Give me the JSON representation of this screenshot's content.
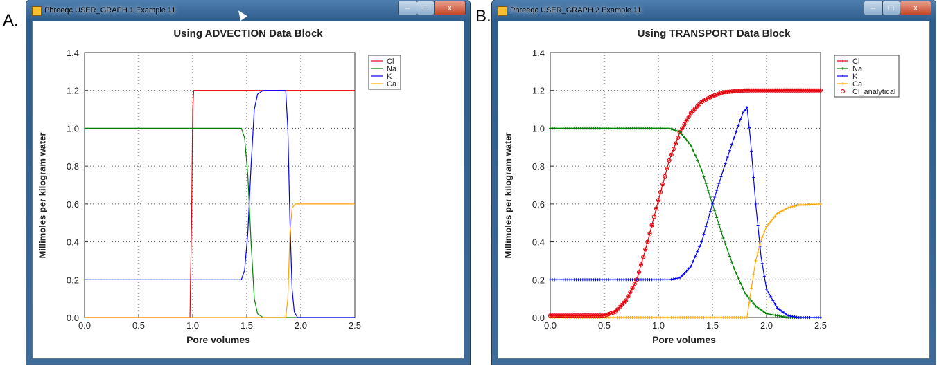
{
  "labels": {
    "a": "A.",
    "b": "B."
  },
  "windows": [
    {
      "title": "Phreeqc USER_GRAPH 1 Example 11",
      "controls": {
        "minimize": "–",
        "maximize": "□",
        "close": "x"
      }
    },
    {
      "title": "Phreeqc USER_GRAPH 2 Example 11",
      "controls": {
        "minimize": "–",
        "maximize": "□",
        "close": "x"
      }
    }
  ],
  "chart_data": [
    {
      "type": "line",
      "title": "Using ADVECTION Data Block",
      "xlabel": "Pore volumes",
      "ylabel": "Millimoles per kilogram water",
      "xlim": [
        0,
        2.5
      ],
      "ylim": [
        0,
        1.4
      ],
      "xticks": [
        "0.0",
        "0.5",
        "1.0",
        "1.5",
        "2.0",
        "2.5"
      ],
      "yticks": [
        "0.0",
        "0.2",
        "0.4",
        "0.6",
        "0.8",
        "1.0",
        "1.2",
        "1.4"
      ],
      "grid": true,
      "legend": "top-right",
      "series": [
        {
          "name": "Cl",
          "color": "#e8000b",
          "marker": "none",
          "points": [
            [
              0,
              0
            ],
            [
              0.975,
              0
            ],
            [
              0.98,
              0.2
            ],
            [
              0.99,
              0.5
            ],
            [
              1.0,
              1.1
            ],
            [
              1.01,
              1.2
            ],
            [
              2.5,
              1.2
            ]
          ]
        },
        {
          "name": "Na",
          "color": "#008000",
          "marker": "none",
          "points": [
            [
              0,
              1.0
            ],
            [
              1.45,
              1.0
            ],
            [
              1.48,
              0.95
            ],
            [
              1.51,
              0.75
            ],
            [
              1.54,
              0.4
            ],
            [
              1.57,
              0.1
            ],
            [
              1.6,
              0.02
            ],
            [
              1.65,
              0
            ],
            [
              2.5,
              0
            ]
          ]
        },
        {
          "name": "K",
          "color": "#0000ff",
          "marker": "none",
          "points": [
            [
              0,
              0.2
            ],
            [
              1.45,
              0.2
            ],
            [
              1.48,
              0.25
            ],
            [
              1.51,
              0.45
            ],
            [
              1.54,
              0.8
            ],
            [
              1.57,
              1.1
            ],
            [
              1.6,
              1.18
            ],
            [
              1.65,
              1.2
            ],
            [
              1.86,
              1.2
            ],
            [
              1.88,
              1.0
            ],
            [
              1.9,
              0.5
            ],
            [
              1.92,
              0.15
            ],
            [
              1.94,
              0.03
            ],
            [
              1.97,
              0
            ],
            [
              2.5,
              0
            ]
          ]
        },
        {
          "name": "Ca",
          "color": "#ffa500",
          "marker": "none",
          "points": [
            [
              0,
              0
            ],
            [
              1.86,
              0
            ],
            [
              1.88,
              0.1
            ],
            [
              1.9,
              0.45
            ],
            [
              1.92,
              0.58
            ],
            [
              1.95,
              0.6
            ],
            [
              2.5,
              0.6
            ]
          ]
        }
      ]
    },
    {
      "type": "line",
      "title": "Using TRANSPORT Data Block",
      "xlabel": "Pore volumes",
      "ylabel": "Millimoles per kilogram water",
      "xlim": [
        0,
        2.5
      ],
      "ylim": [
        0,
        1.4
      ],
      "xticks": [
        "0.0",
        "0.5",
        "1.0",
        "1.5",
        "2.0",
        "2.5"
      ],
      "yticks": [
        "0.0",
        "0.2",
        "0.4",
        "0.6",
        "0.8",
        "1.0",
        "1.2",
        "1.4"
      ],
      "grid": true,
      "legend": "top-right",
      "series": [
        {
          "name": "Cl",
          "color": "#e8000b",
          "marker": "plus",
          "points": [
            [
              0,
              0.01
            ],
            [
              0.5,
              0.01
            ],
            [
              0.6,
              0.03
            ],
            [
              0.7,
              0.09
            ],
            [
              0.8,
              0.2
            ],
            [
              0.9,
              0.4
            ],
            [
              1.0,
              0.62
            ],
            [
              1.1,
              0.83
            ],
            [
              1.2,
              0.98
            ],
            [
              1.3,
              1.08
            ],
            [
              1.4,
              1.14
            ],
            [
              1.5,
              1.17
            ],
            [
              1.6,
              1.19
            ],
            [
              1.8,
              1.2
            ],
            [
              2.5,
              1.2
            ]
          ]
        },
        {
          "name": "Na",
          "color": "#008000",
          "marker": "plus",
          "points": [
            [
              0,
              1.0
            ],
            [
              1.1,
              1.0
            ],
            [
              1.2,
              0.98
            ],
            [
              1.3,
              0.91
            ],
            [
              1.4,
              0.78
            ],
            [
              1.5,
              0.6
            ],
            [
              1.6,
              0.42
            ],
            [
              1.7,
              0.26
            ],
            [
              1.8,
              0.13
            ],
            [
              1.9,
              0.06
            ],
            [
              2.0,
              0.02
            ],
            [
              2.1,
              0.01
            ],
            [
              2.2,
              0
            ],
            [
              2.5,
              0
            ]
          ]
        },
        {
          "name": "K",
          "color": "#0000ff",
          "marker": "plus",
          "points": [
            [
              0,
              0.2
            ],
            [
              1.1,
              0.2
            ],
            [
              1.2,
              0.21
            ],
            [
              1.3,
              0.27
            ],
            [
              1.4,
              0.4
            ],
            [
              1.5,
              0.6
            ],
            [
              1.6,
              0.78
            ],
            [
              1.7,
              0.95
            ],
            [
              1.78,
              1.08
            ],
            [
              1.82,
              1.11
            ],
            [
              1.85,
              0.95
            ],
            [
              1.9,
              0.6
            ],
            [
              1.95,
              0.32
            ],
            [
              2.0,
              0.15
            ],
            [
              2.1,
              0.05
            ],
            [
              2.2,
              0.01
            ],
            [
              2.3,
              0
            ],
            [
              2.5,
              0
            ]
          ]
        },
        {
          "name": "Ca",
          "color": "#ffa500",
          "marker": "plus",
          "points": [
            [
              0,
              0
            ],
            [
              1.82,
              0
            ],
            [
              1.85,
              0.12
            ],
            [
              1.9,
              0.3
            ],
            [
              1.95,
              0.41
            ],
            [
              2.0,
              0.48
            ],
            [
              2.1,
              0.55
            ],
            [
              2.2,
              0.58
            ],
            [
              2.3,
              0.595
            ],
            [
              2.5,
              0.6
            ]
          ]
        },
        {
          "name": "Cl_analytical",
          "color": "#e8000b",
          "marker": "circle",
          "points": [
            [
              0,
              0.01
            ],
            [
              0.5,
              0.01
            ],
            [
              0.6,
              0.03
            ],
            [
              0.7,
              0.09
            ],
            [
              0.8,
              0.2
            ],
            [
              0.9,
              0.4
            ],
            [
              1.0,
              0.62
            ],
            [
              1.1,
              0.83
            ],
            [
              1.2,
              0.98
            ],
            [
              1.3,
              1.08
            ],
            [
              1.4,
              1.14
            ],
            [
              1.5,
              1.17
            ],
            [
              1.6,
              1.19
            ],
            [
              1.8,
              1.2
            ],
            [
              2.5,
              1.2
            ]
          ]
        }
      ]
    }
  ]
}
